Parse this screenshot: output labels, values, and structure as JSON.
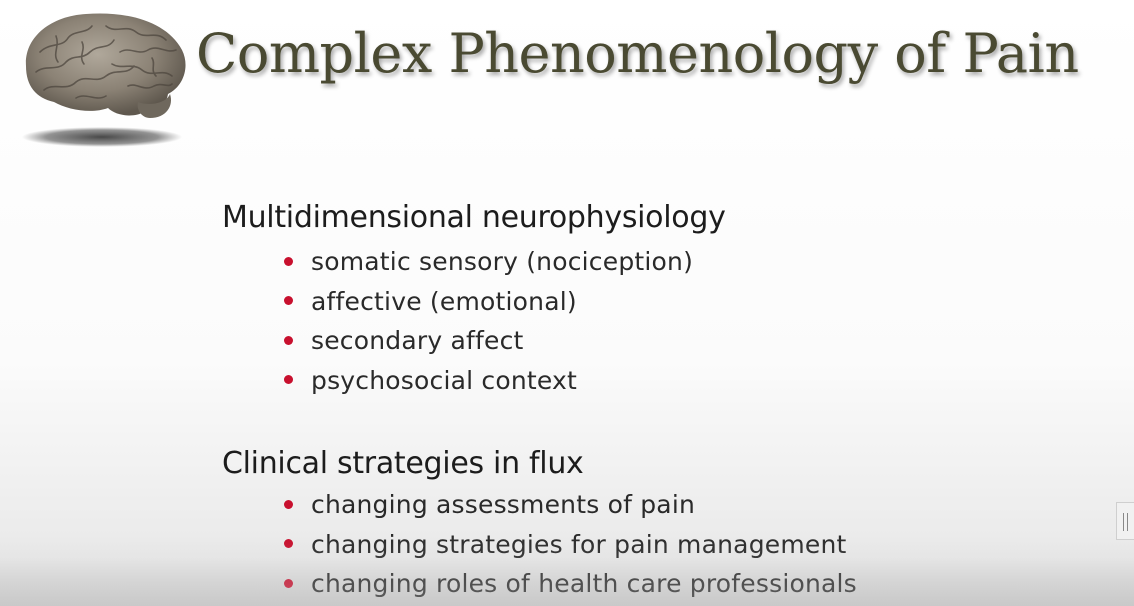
{
  "slide": {
    "title": "Complex Phenomenology of Pain",
    "sections": [
      {
        "heading": "Multidimensional neurophysiology",
        "bullets": [
          "somatic sensory (nociception)",
          "affective (emotional)",
          "secondary affect",
          "psychosocial context"
        ]
      },
      {
        "heading": "Clinical strategies in flux",
        "bullets": [
          "changing assessments of pain",
          "changing strategies for pain management",
          "changing roles of health care professionals"
        ]
      }
    ]
  },
  "icons": {
    "brain": "brain-icon",
    "bullet": "bullet-dot-icon",
    "scroll_handle": "scroll-handle-icon"
  },
  "colors": {
    "title": "#4a4a32",
    "bullet": "#c8102e",
    "text": "#2a2a2a",
    "brain": "#8b8275"
  }
}
